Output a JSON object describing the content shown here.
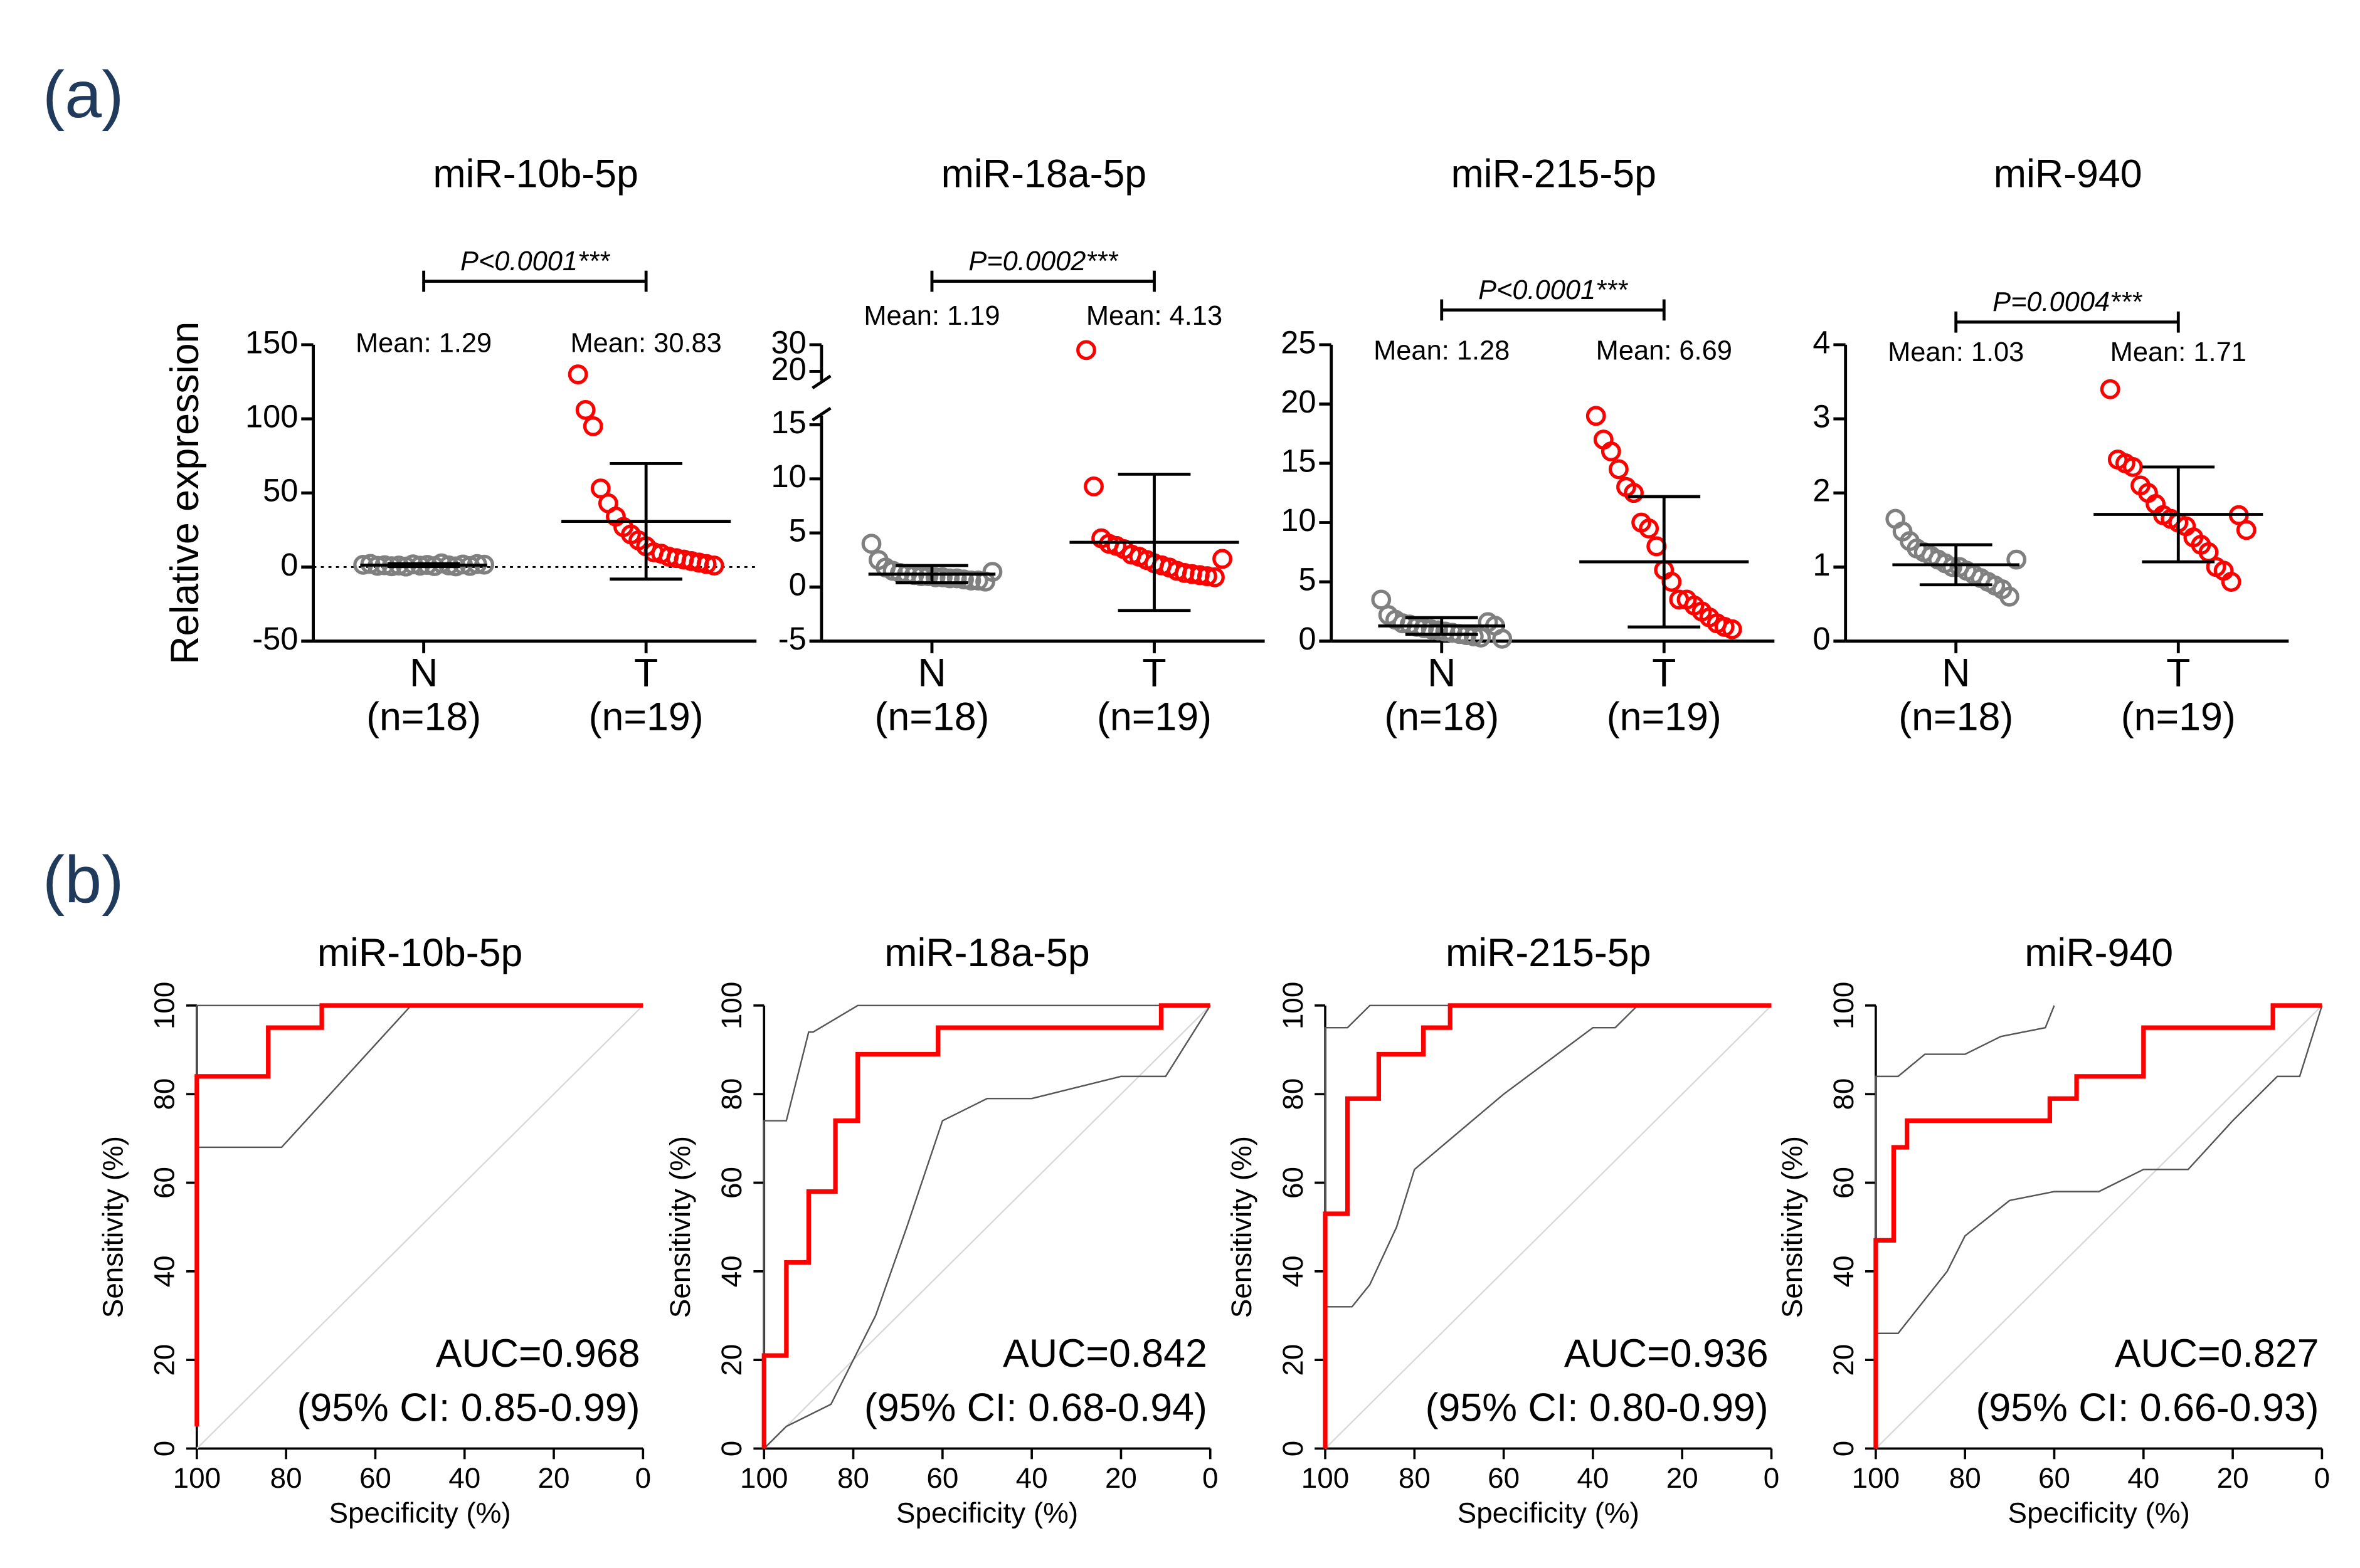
{
  "panel_labels": [
    "(a)",
    "(b)"
  ],
  "chart_data": [
    {
      "type": "dot",
      "title": "miR-10b-5p",
      "ylabel": "Relative expression",
      "categories": [
        "N",
        "T"
      ],
      "sublabels": [
        "(n=18)",
        "(n=19)"
      ],
      "ylim": [
        -50,
        150
      ],
      "yticks": [
        -50,
        0,
        50,
        100,
        150
      ],
      "zero_line": true,
      "p_label": "P<0.0001***",
      "groups": [
        {
          "color": "#808080",
          "values": [
            1.5,
            2.1,
            0.8,
            1.2,
            0.5,
            1.0,
            0.3,
            1.8,
            0.9,
            1.4,
            0.6,
            2.5,
            1.1,
            0.4,
            1.7,
            0.7,
            2.0,
            1.6
          ]
        },
        {
          "color": "#ff0000",
          "values": [
            130,
            106,
            95,
            53,
            43,
            34,
            27,
            22,
            18,
            14,
            10,
            9,
            7,
            6,
            5,
            4,
            3,
            2,
            1
          ]
        }
      ],
      "means": [
        1.29,
        30.83
      ],
      "mean_labels": [
        "Mean: 1.29",
        "Mean: 30.83"
      ],
      "sd": [
        1.0,
        39
      ]
    },
    {
      "type": "dot",
      "title": "miR-18a-5p",
      "categories": [
        "N",
        "T"
      ],
      "sublabels": [
        "(n=18)",
        "(n=19)"
      ],
      "ylim": [
        -5,
        30
      ],
      "ybreak": [
        15,
        20
      ],
      "yticks": [
        -5,
        0,
        5,
        10,
        15,
        20,
        30
      ],
      "p_label": "P=0.0002***",
      "groups": [
        {
          "color": "#808080",
          "values": [
            4.0,
            2.5,
            1.8,
            1.5,
            1.3,
            1.2,
            1.1,
            1.0,
            1.0,
            0.9,
            0.9,
            0.8,
            0.8,
            0.7,
            0.6,
            0.6,
            0.5,
            1.4
          ]
        },
        {
          "color": "#ff0000",
          "values": [
            28,
            9.3,
            4.5,
            4.0,
            3.8,
            3.5,
            3.0,
            2.8,
            2.5,
            2.2,
            2.0,
            1.8,
            1.5,
            1.3,
            1.2,
            1.1,
            1.0,
            0.9,
            2.6
          ]
        }
      ],
      "means": [
        1.19,
        4.13
      ],
      "mean_labels": [
        "Mean: 1.19",
        "Mean: 4.13"
      ],
      "sd": [
        0.8,
        6.3
      ]
    },
    {
      "type": "dot",
      "title": "miR-215-5p",
      "categories": [
        "N",
        "T"
      ],
      "sublabels": [
        "(n=18)",
        "(n=19)"
      ],
      "ylim": [
        0,
        25
      ],
      "yticks": [
        0,
        5,
        10,
        15,
        20,
        25
      ],
      "p_label": "P<0.0001***",
      "groups": [
        {
          "color": "#808080",
          "values": [
            3.5,
            2.2,
            1.8,
            1.5,
            1.4,
            1.2,
            1.1,
            1.0,
            0.9,
            0.8,
            0.7,
            0.6,
            0.5,
            0.4,
            0.3,
            1.6,
            1.3,
            0.2
          ]
        },
        {
          "color": "#ff0000",
          "values": [
            19,
            17,
            16,
            14.5,
            13,
            12.5,
            10,
            9.5,
            8,
            6,
            5,
            3.5,
            3.5,
            3,
            2.5,
            2,
            1.5,
            1.2,
            1.0
          ]
        }
      ],
      "means": [
        1.28,
        6.69
      ],
      "mean_labels": [
        "Mean: 1.28",
        "Mean: 6.69"
      ],
      "sd": [
        0.7,
        5.5
      ]
    },
    {
      "type": "dot",
      "title": "miR-940",
      "categories": [
        "N",
        "T"
      ],
      "sublabels": [
        "(n=18)",
        "(n=19)"
      ],
      "ylim": [
        0,
        4
      ],
      "yticks": [
        0,
        1,
        2,
        3,
        4
      ],
      "p_label": "P=0.0004***",
      "groups": [
        {
          "color": "#808080",
          "values": [
            1.65,
            1.48,
            1.35,
            1.25,
            1.2,
            1.15,
            1.1,
            1.05,
            1.0,
            1.0,
            0.95,
            0.9,
            0.85,
            0.8,
            0.75,
            0.7,
            0.6,
            1.1
          ]
        },
        {
          "color": "#ff0000",
          "values": [
            3.4,
            2.45,
            2.4,
            2.35,
            2.1,
            2.0,
            1.85,
            1.7,
            1.65,
            1.6,
            1.55,
            1.4,
            1.3,
            1.2,
            1.0,
            0.95,
            0.8,
            1.7,
            1.5
          ]
        }
      ],
      "means": [
        1.03,
        1.71
      ],
      "mean_labels": [
        "Mean: 1.03",
        "Mean: 1.71"
      ],
      "sd": [
        0.27,
        0.64
      ]
    },
    {
      "type": "roc",
      "title": "miR-10b-5p",
      "xlabel": "Specificity (%)",
      "ylabel": "Sensitivity (%)",
      "xlim": [
        100,
        0
      ],
      "ylim": [
        0,
        100
      ],
      "xticks": [
        100,
        80,
        60,
        40,
        20,
        0
      ],
      "yticks": [
        0,
        20,
        40,
        60,
        80,
        100
      ],
      "annotations": [
        "AUC=0.968",
        "(95% CI: 0.85-0.99)"
      ],
      "curves": [
        {
          "color": "#d9d9d9",
          "width": 1,
          "x": [
            100,
            0
          ],
          "y": [
            0,
            100
          ]
        },
        {
          "color": "#555555",
          "width": 1,
          "x": [
            100,
            100,
            0
          ],
          "y": [
            68,
            100,
            100
          ]
        },
        {
          "color": "#555555",
          "width": 1,
          "x": [
            100,
            81,
            52,
            0
          ],
          "y": [
            68,
            68,
            100,
            100
          ]
        },
        {
          "color": "#ff0000",
          "width": 3,
          "x": [
            100,
            100,
            84,
            84,
            72,
            72,
            0
          ],
          "y": [
            5,
            84,
            84,
            95,
            95,
            100,
            100
          ]
        }
      ]
    },
    {
      "type": "roc",
      "title": "miR-18a-5p",
      "xlabel": "Specificity (%)",
      "ylabel": "Sensitivity (%)",
      "xlim": [
        100,
        0
      ],
      "ylim": [
        0,
        100
      ],
      "xticks": [
        100,
        80,
        60,
        40,
        20,
        0
      ],
      "yticks": [
        0,
        20,
        40,
        60,
        80,
        100
      ],
      "annotations": [
        "AUC=0.842",
        "(95% CI: 0.68-0.94)"
      ],
      "curves": [
        {
          "color": "#d9d9d9",
          "width": 1,
          "x": [
            100,
            0
          ],
          "y": [
            0,
            100
          ]
        },
        {
          "color": "#555555",
          "width": 1,
          "x": [
            100,
            100,
            95,
            90,
            89,
            79,
            0
          ],
          "y": [
            0,
            74,
            74,
            94,
            94,
            100,
            100
          ]
        },
        {
          "color": "#555555",
          "width": 1,
          "x": [
            100,
            95,
            85,
            75,
            68,
            60,
            50,
            40,
            20,
            10,
            0
          ],
          "y": [
            0,
            5,
            10,
            30,
            50,
            74,
            79,
            79,
            84,
            84,
            100
          ]
        },
        {
          "color": "#ff0000",
          "width": 3,
          "x": [
            100,
            100,
            95,
            95,
            90,
            90,
            84,
            84,
            79,
            79,
            61,
            61,
            11,
            11,
            0
          ],
          "y": [
            0,
            21,
            21,
            42,
            42,
            58,
            58,
            74,
            74,
            89,
            89,
            95,
            95,
            100,
            100
          ]
        }
      ]
    },
    {
      "type": "roc",
      "title": "miR-215-5p",
      "xlabel": "Specificity (%)",
      "ylabel": "Sensitivity (%)",
      "xlim": [
        100,
        0
      ],
      "ylim": [
        0,
        100
      ],
      "xticks": [
        100,
        80,
        60,
        40,
        20,
        0
      ],
      "yticks": [
        0,
        20,
        40,
        60,
        80,
        100
      ],
      "annotations": [
        "AUC=0.936",
        "(95% CI: 0.80-0.99)"
      ],
      "curves": [
        {
          "color": "#d9d9d9",
          "width": 1,
          "x": [
            100,
            0
          ],
          "y": [
            0,
            100
          ]
        },
        {
          "color": "#555555",
          "width": 1,
          "x": [
            100,
            100,
            95,
            90,
            67,
            0
          ],
          "y": [
            0,
            95,
            95,
            100,
            100,
            100
          ]
        },
        {
          "color": "#555555",
          "width": 1,
          "x": [
            100,
            100,
            94,
            90,
            84,
            80,
            60,
            40,
            35,
            30,
            0
          ],
          "y": [
            0,
            32,
            32,
            37,
            50,
            63,
            80,
            95,
            95,
            100,
            100
          ]
        },
        {
          "color": "#ff0000",
          "width": 3,
          "x": [
            100,
            100,
            95,
            95,
            88,
            88,
            78,
            78,
            72,
            72,
            0
          ],
          "y": [
            0,
            53,
            53,
            79,
            79,
            89,
            89,
            95,
            95,
            100,
            100
          ]
        }
      ]
    },
    {
      "type": "roc",
      "title": "miR-940",
      "xlabel": "Specificity (%)",
      "ylabel": "Sensitivity (%)",
      "xlim": [
        100,
        0
      ],
      "ylim": [
        0,
        100
      ],
      "xticks": [
        100,
        80,
        60,
        40,
        20,
        0
      ],
      "yticks": [
        0,
        20,
        40,
        60,
        80,
        100
      ],
      "annotations": [
        "AUC=0.827",
        "(95% CI: 0.66-0.93)"
      ],
      "curves": [
        {
          "color": "#d9d9d9",
          "width": 1,
          "x": [
            100,
            0
          ],
          "y": [
            0,
            100
          ]
        },
        {
          "color": "#555555",
          "width": 1,
          "x": [
            100,
            100,
            95,
            89,
            80,
            72,
            62,
            60
          ],
          "y": [
            0,
            84,
            84,
            89,
            89,
            93,
            95,
            100
          ]
        },
        {
          "color": "#555555",
          "width": 1,
          "x": [
            100,
            95,
            84,
            80,
            75,
            70,
            60,
            50,
            40,
            30,
            20,
            10,
            5,
            0
          ],
          "y": [
            26,
            26,
            40,
            48,
            52,
            56,
            58,
            58,
            63,
            63,
            74,
            84,
            84,
            100
          ]
        },
        {
          "color": "#ff0000",
          "width": 3,
          "x": [
            100,
            100,
            96,
            96,
            93,
            93,
            61,
            61,
            55,
            55,
            40,
            40,
            11,
            11,
            0
          ],
          "y": [
            0,
            47,
            47,
            68,
            68,
            74,
            74,
            79,
            79,
            84,
            84,
            95,
            95,
            100,
            100
          ]
        }
      ]
    }
  ]
}
